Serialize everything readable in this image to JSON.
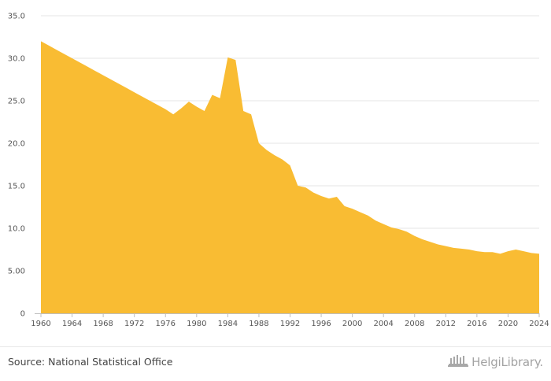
{
  "chart_data": {
    "type": "area",
    "title": "",
    "xlabel": "",
    "ylabel": "",
    "xlim": [
      1960,
      2024
    ],
    "ylim": [
      0,
      35
    ],
    "x_ticks": [
      "1960",
      "1964",
      "1968",
      "1972",
      "1976",
      "1980",
      "1984",
      "1988",
      "1992",
      "1996",
      "2000",
      "2004",
      "2008",
      "2012",
      "2016",
      "2020",
      "2024"
    ],
    "y_ticks": [
      "0",
      "5.00",
      "10.0",
      "15.0",
      "20.0",
      "25.0",
      "30.0",
      "35.0"
    ],
    "grid": true,
    "color": "#f9bc33",
    "series": [
      {
        "x": [
          1960,
          1961,
          1962,
          1963,
          1964,
          1965,
          1966,
          1967,
          1968,
          1969,
          1970,
          1971,
          1972,
          1973,
          1974,
          1975,
          1976,
          1977,
          1978,
          1979,
          1980,
          1981,
          1982,
          1983,
          1984,
          1985,
          1986,
          1987,
          1988,
          1989,
          1990,
          1991,
          1992,
          1993,
          1994,
          1995,
          1996,
          1997,
          1998,
          1999,
          2000,
          2001,
          2002,
          2003,
          2004,
          2005,
          2006,
          2007,
          2008,
          2009,
          2010,
          2011,
          2012,
          2013,
          2014,
          2015,
          2016,
          2017,
          2018,
          2019,
          2020,
          2021,
          2022,
          2023,
          2024
        ],
        "values": [
          32.0,
          31.5,
          31.0,
          30.5,
          30.0,
          29.5,
          29.0,
          28.5,
          28.0,
          27.5,
          27.0,
          26.5,
          26.0,
          25.5,
          25.0,
          24.5,
          24.0,
          23.4,
          24.1,
          24.9,
          24.3,
          23.8,
          25.7,
          25.3,
          30.1,
          29.8,
          23.8,
          23.4,
          20.0,
          19.2,
          18.6,
          18.1,
          17.4,
          15.0,
          14.8,
          14.2,
          13.8,
          13.5,
          13.7,
          12.6,
          12.3,
          11.9,
          11.5,
          10.9,
          10.5,
          10.1,
          9.9,
          9.6,
          9.1,
          8.7,
          8.4,
          8.1,
          7.9,
          7.7,
          7.6,
          7.5,
          7.3,
          7.2,
          7.2,
          7.0,
          7.3,
          7.5,
          7.3,
          7.1,
          7.0
        ]
      }
    ]
  },
  "footer": {
    "source": "Source: National Statistical Office",
    "logo_text": "HelgiLibrary.",
    "logo_icon": "helgi-library-icon"
  }
}
